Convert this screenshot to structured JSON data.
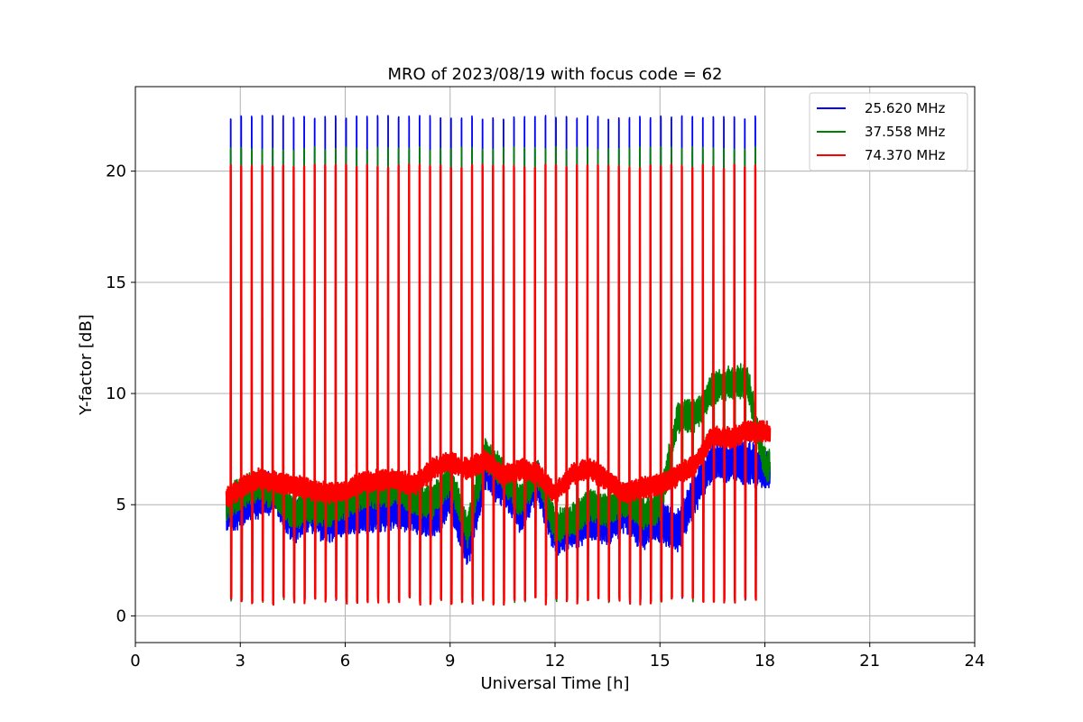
{
  "chart_data": {
    "type": "line",
    "title": "MRO of 2023/08/19 with focus code = 62",
    "xlabel": "Universal Time [h]",
    "ylabel": "Y-factor [dB]",
    "xlim": [
      0,
      24
    ],
    "ylim": [
      -1.2,
      23.8
    ],
    "xticks": [
      0,
      3,
      6,
      9,
      12,
      15,
      18,
      21,
      24
    ],
    "yticks": [
      0,
      5,
      10,
      15,
      20
    ],
    "grid": true,
    "legend_position": "top-right",
    "calibration_pulses": {
      "x_start": 2.72,
      "x_end": 18.0,
      "period_h": 0.3,
      "peak_db": {
        "25.620 MHz": 22.5,
        "37.558 MHz": 21.1,
        "74.370 MHz": 20.3
      },
      "trough_db": {
        "25.620 MHz": 0.7,
        "37.558 MHz": 0.6,
        "74.370 MHz": 0.5
      }
    },
    "series": [
      {
        "name": "25.620 MHz",
        "color": "#0000ff",
        "band_width": 1.4,
        "x": [
          2.6,
          3.0,
          3.5,
          4.0,
          4.5,
          5.0,
          5.5,
          6.0,
          6.5,
          7.0,
          7.5,
          8.0,
          8.5,
          9.0,
          9.5,
          10.0,
          10.5,
          11.0,
          11.5,
          12.0,
          12.5,
          13.0,
          13.5,
          14.0,
          14.5,
          15.0,
          15.5,
          16.0,
          16.5,
          17.0,
          17.5,
          18.0,
          18.15
        ],
        "y": [
          4.6,
          4.9,
          5.3,
          5.6,
          4.2,
          4.6,
          4.2,
          4.5,
          4.7,
          4.6,
          4.8,
          4.6,
          4.3,
          5.4,
          3.0,
          6.5,
          5.9,
          4.7,
          6.1,
          3.6,
          3.9,
          4.4,
          4.1,
          4.7,
          3.9,
          4.3,
          3.8,
          5.5,
          7.0,
          6.9,
          6.9,
          6.6,
          6.6
        ]
      },
      {
        "name": "37.558 MHz",
        "color": "#008000",
        "band_width": 1.1,
        "x": [
          2.6,
          3.0,
          3.5,
          4.0,
          4.5,
          5.0,
          5.5,
          6.0,
          6.5,
          7.0,
          7.5,
          8.0,
          8.5,
          9.0,
          9.5,
          10.0,
          10.5,
          11.0,
          11.5,
          12.0,
          12.5,
          13.0,
          13.5,
          14.0,
          14.5,
          15.0,
          15.5,
          16.0,
          16.5,
          17.0,
          17.5,
          18.0,
          18.15
        ],
        "y": [
          5.0,
          5.5,
          5.8,
          5.5,
          4.6,
          4.9,
          4.7,
          5.0,
          5.5,
          5.6,
          5.8,
          5.2,
          5.1,
          6.2,
          3.8,
          7.3,
          6.4,
          5.2,
          6.4,
          4.0,
          4.3,
          5.0,
          4.7,
          5.2,
          4.6,
          4.9,
          8.9,
          9.0,
          10.2,
          10.5,
          10.6,
          6.8,
          6.8
        ]
      },
      {
        "name": "74.370 MHz",
        "color": "#ff0000",
        "band_width": 0.7,
        "x": [
          2.6,
          3.0,
          3.5,
          4.0,
          4.5,
          5.0,
          5.5,
          6.0,
          6.5,
          7.0,
          7.5,
          8.0,
          8.5,
          9.0,
          9.5,
          10.0,
          10.5,
          11.0,
          11.5,
          12.0,
          12.5,
          13.0,
          13.5,
          14.0,
          14.5,
          15.0,
          15.5,
          16.0,
          16.5,
          17.0,
          17.5,
          18.0,
          18.15
        ],
        "y": [
          5.3,
          5.7,
          6.2,
          6.0,
          5.9,
          5.7,
          5.5,
          5.6,
          6.0,
          6.1,
          6.1,
          5.9,
          6.6,
          6.9,
          6.6,
          7.0,
          6.3,
          6.6,
          6.4,
          5.5,
          6.4,
          6.6,
          6.1,
          5.5,
          5.8,
          5.9,
          6.3,
          6.8,
          8.1,
          8.0,
          8.3,
          8.3,
          8.2
        ]
      }
    ]
  }
}
